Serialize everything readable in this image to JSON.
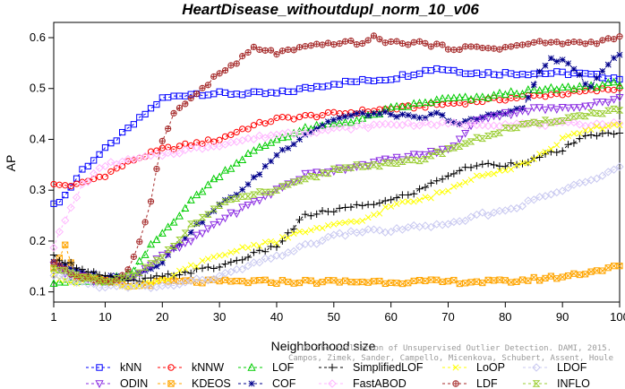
{
  "chart_data": {
    "type": "line",
    "title": "HeartDisease_withoutdupl_norm_10_v06",
    "xlabel": "Neighborhood size",
    "ylabel": "AP",
    "xlim": [
      1,
      100
    ],
    "ylim": [
      0.08,
      0.63
    ],
    "xticks": [
      1,
      10,
      20,
      30,
      40,
      50,
      60,
      70,
      80,
      90,
      100
    ],
    "yticks": [
      0.1,
      0.2,
      0.3,
      0.4,
      0.5,
      0.6
    ],
    "grid": false,
    "legend_position": "bottom",
    "credit": "Campos, Zimek, Sander, Campello, Micenková, Schubert, Assent, Houle",
    "credit_line1": "On the Evaluation of Unsupervised Outlier Detection. DAMI, 2015.",
    "credit_line2": "Campos, Zimek, Sander, Campello, Micenkova, Schubert, Assent, Houle",
    "series": [
      {
        "name": "kNN",
        "color": "#0000ff",
        "marker": "square",
        "dash": "3,3",
        "knots": [
          [
            1,
            0.27
          ],
          [
            3,
            0.29
          ],
          [
            6,
            0.34
          ],
          [
            10,
            0.38
          ],
          [
            14,
            0.42
          ],
          [
            17,
            0.45
          ],
          [
            20,
            0.48
          ],
          [
            25,
            0.49
          ],
          [
            30,
            0.49
          ],
          [
            40,
            0.49
          ],
          [
            50,
            0.51
          ],
          [
            60,
            0.52
          ],
          [
            68,
            0.54
          ],
          [
            75,
            0.53
          ],
          [
            85,
            0.53
          ],
          [
            92,
            0.53
          ],
          [
            100,
            0.52
          ]
        ]
      },
      {
        "name": "kNNW",
        "color": "#ff0000",
        "marker": "circle",
        "dash": "3,3",
        "knots": [
          [
            1,
            0.31
          ],
          [
            5,
            0.31
          ],
          [
            10,
            0.33
          ],
          [
            15,
            0.36
          ],
          [
            20,
            0.38
          ],
          [
            25,
            0.39
          ],
          [
            30,
            0.4
          ],
          [
            34,
            0.42
          ],
          [
            40,
            0.44
          ],
          [
            50,
            0.45
          ],
          [
            60,
            0.46
          ],
          [
            70,
            0.47
          ],
          [
            80,
            0.48
          ],
          [
            90,
            0.49
          ],
          [
            100,
            0.5
          ]
        ]
      },
      {
        "name": "LOF",
        "color": "#00cc00",
        "marker": "triangle",
        "dash": "3,3",
        "knots": [
          [
            1,
            0.12
          ],
          [
            5,
            0.12
          ],
          [
            10,
            0.12
          ],
          [
            15,
            0.14
          ],
          [
            18,
            0.19
          ],
          [
            22,
            0.24
          ],
          [
            26,
            0.29
          ],
          [
            30,
            0.33
          ],
          [
            35,
            0.37
          ],
          [
            40,
            0.4
          ],
          [
            45,
            0.42
          ],
          [
            50,
            0.43
          ],
          [
            55,
            0.44
          ],
          [
            60,
            0.46
          ],
          [
            65,
            0.47
          ],
          [
            70,
            0.48
          ],
          [
            75,
            0.48
          ],
          [
            80,
            0.49
          ],
          [
            90,
            0.5
          ],
          [
            100,
            0.51
          ]
        ]
      },
      {
        "name": "COF",
        "color": "#00008b",
        "marker": "star",
        "dash": "3,3",
        "knots": [
          [
            1,
            0.16
          ],
          [
            5,
            0.14
          ],
          [
            10,
            0.13
          ],
          [
            15,
            0.13
          ],
          [
            20,
            0.16
          ],
          [
            25,
            0.22
          ],
          [
            30,
            0.27
          ],
          [
            35,
            0.31
          ],
          [
            40,
            0.37
          ],
          [
            45,
            0.41
          ],
          [
            50,
            0.44
          ],
          [
            55,
            0.45
          ],
          [
            60,
            0.45
          ],
          [
            65,
            0.44
          ],
          [
            68,
            0.45
          ],
          [
            72,
            0.43
          ],
          [
            78,
            0.45
          ],
          [
            83,
            0.46
          ],
          [
            86,
            0.53
          ],
          [
            88,
            0.56
          ],
          [
            91,
            0.55
          ],
          [
            95,
            0.5
          ],
          [
            98,
            0.55
          ],
          [
            100,
            0.57
          ]
        ]
      },
      {
        "name": "ODIN",
        "color": "#8a2be2",
        "marker": "triangle-down",
        "dash": "3,3",
        "knots": [
          [
            1,
            0.15
          ],
          [
            5,
            0.13
          ],
          [
            10,
            0.12
          ],
          [
            15,
            0.13
          ],
          [
            20,
            0.17
          ],
          [
            25,
            0.2
          ],
          [
            30,
            0.24
          ],
          [
            35,
            0.27
          ],
          [
            40,
            0.3
          ],
          [
            45,
            0.33
          ],
          [
            50,
            0.34
          ],
          [
            55,
            0.35
          ],
          [
            60,
            0.36
          ],
          [
            65,
            0.37
          ],
          [
            70,
            0.38
          ],
          [
            73,
            0.41
          ],
          [
            75,
            0.44
          ],
          [
            80,
            0.45
          ],
          [
            85,
            0.46
          ],
          [
            90,
            0.46
          ],
          [
            100,
            0.48
          ]
        ]
      },
      {
        "name": "KDEOS",
        "color": "#ffa500",
        "marker": "square-x",
        "dash": "3,3",
        "knots": [
          [
            1,
            0.15
          ],
          [
            3,
            0.19
          ],
          [
            5,
            0.13
          ],
          [
            10,
            0.12
          ],
          [
            15,
            0.11
          ],
          [
            20,
            0.12
          ],
          [
            30,
            0.12
          ],
          [
            40,
            0.12
          ],
          [
            50,
            0.12
          ],
          [
            60,
            0.12
          ],
          [
            70,
            0.12
          ],
          [
            80,
            0.12
          ],
          [
            90,
            0.13
          ],
          [
            95,
            0.14
          ],
          [
            100,
            0.15
          ]
        ]
      },
      {
        "name": "SimplifiedLOF",
        "color": "#000000",
        "marker": "plus",
        "dash": "3,3",
        "knots": [
          [
            1,
            0.17
          ],
          [
            5,
            0.15
          ],
          [
            10,
            0.13
          ],
          [
            15,
            0.12
          ],
          [
            20,
            0.13
          ],
          [
            25,
            0.14
          ],
          [
            30,
            0.15
          ],
          [
            35,
            0.17
          ],
          [
            40,
            0.19
          ],
          [
            45,
            0.25
          ],
          [
            50,
            0.26
          ],
          [
            55,
            0.27
          ],
          [
            60,
            0.28
          ],
          [
            65,
            0.3
          ],
          [
            70,
            0.33
          ],
          [
            75,
            0.35
          ],
          [
            80,
            0.35
          ],
          [
            85,
            0.36
          ],
          [
            90,
            0.38
          ],
          [
            95,
            0.41
          ],
          [
            100,
            0.41
          ]
        ]
      },
      {
        "name": "FastABOD",
        "color": "#ffb6ff",
        "marker": "diamond",
        "dash": "3,3",
        "knots": [
          [
            1,
            0.19
          ],
          [
            3,
            0.24
          ],
          [
            6,
            0.31
          ],
          [
            10,
            0.35
          ],
          [
            15,
            0.36
          ],
          [
            20,
            0.37
          ],
          [
            25,
            0.38
          ],
          [
            30,
            0.39
          ],
          [
            35,
            0.4
          ],
          [
            40,
            0.41
          ],
          [
            50,
            0.42
          ],
          [
            60,
            0.43
          ],
          [
            70,
            0.43
          ],
          [
            80,
            0.43
          ],
          [
            90,
            0.43
          ],
          [
            100,
            0.43
          ]
        ]
      },
      {
        "name": "LoOP",
        "color": "#ffff00",
        "marker": "x",
        "dash": "3,3",
        "knots": [
          [
            1,
            0.13
          ],
          [
            5,
            0.12
          ],
          [
            10,
            0.12
          ],
          [
            15,
            0.11
          ],
          [
            20,
            0.12
          ],
          [
            25,
            0.15
          ],
          [
            30,
            0.17
          ],
          [
            35,
            0.19
          ],
          [
            40,
            0.2
          ],
          [
            45,
            0.22
          ],
          [
            50,
            0.23
          ],
          [
            55,
            0.24
          ],
          [
            60,
            0.27
          ],
          [
            65,
            0.28
          ],
          [
            70,
            0.3
          ],
          [
            75,
            0.33
          ],
          [
            80,
            0.34
          ],
          [
            85,
            0.36
          ],
          [
            90,
            0.4
          ],
          [
            95,
            0.42
          ],
          [
            100,
            0.43
          ]
        ]
      },
      {
        "name": "LDF",
        "color": "#a52a2a",
        "marker": "circle-plus",
        "dash": "3,3",
        "knots": [
          [
            1,
            0.16
          ],
          [
            5,
            0.13
          ],
          [
            10,
            0.12
          ],
          [
            12,
            0.12
          ],
          [
            14,
            0.14
          ],
          [
            16,
            0.2
          ],
          [
            18,
            0.28
          ],
          [
            20,
            0.4
          ],
          [
            22,
            0.45
          ],
          [
            25,
            0.48
          ],
          [
            28,
            0.51
          ],
          [
            30,
            0.53
          ],
          [
            33,
            0.55
          ],
          [
            36,
            0.58
          ],
          [
            40,
            0.57
          ],
          [
            45,
            0.58
          ],
          [
            50,
            0.59
          ],
          [
            55,
            0.59
          ],
          [
            57,
            0.6
          ],
          [
            60,
            0.59
          ],
          [
            65,
            0.59
          ],
          [
            70,
            0.58
          ],
          [
            75,
            0.58
          ],
          [
            80,
            0.58
          ],
          [
            85,
            0.59
          ],
          [
            90,
            0.59
          ],
          [
            95,
            0.59
          ],
          [
            100,
            0.6
          ]
        ]
      },
      {
        "name": "LDOF",
        "color": "#c8c8f0",
        "marker": "diamond-open",
        "dash": "3,3",
        "knots": [
          [
            1,
            0.13
          ],
          [
            5,
            0.12
          ],
          [
            10,
            0.11
          ],
          [
            15,
            0.11
          ],
          [
            20,
            0.11
          ],
          [
            25,
            0.12
          ],
          [
            30,
            0.13
          ],
          [
            35,
            0.15
          ],
          [
            40,
            0.17
          ],
          [
            45,
            0.19
          ],
          [
            50,
            0.21
          ],
          [
            55,
            0.22
          ],
          [
            60,
            0.22
          ],
          [
            65,
            0.23
          ],
          [
            70,
            0.23
          ],
          [
            75,
            0.25
          ],
          [
            80,
            0.26
          ],
          [
            85,
            0.28
          ],
          [
            90,
            0.3
          ],
          [
            95,
            0.32
          ],
          [
            100,
            0.35
          ]
        ]
      },
      {
        "name": "INFLO",
        "color": "#9acd32",
        "marker": "hourglass",
        "dash": "3,3",
        "knots": [
          [
            1,
            0.15
          ],
          [
            5,
            0.13
          ],
          [
            10,
            0.12
          ],
          [
            15,
            0.13
          ],
          [
            20,
            0.17
          ],
          [
            25,
            0.23
          ],
          [
            30,
            0.27
          ],
          [
            35,
            0.29
          ],
          [
            40,
            0.3
          ],
          [
            45,
            0.32
          ],
          [
            50,
            0.34
          ],
          [
            55,
            0.35
          ],
          [
            60,
            0.35
          ],
          [
            65,
            0.36
          ],
          [
            70,
            0.38
          ],
          [
            75,
            0.4
          ],
          [
            80,
            0.42
          ],
          [
            85,
            0.43
          ],
          [
            90,
            0.44
          ],
          [
            95,
            0.45
          ],
          [
            100,
            0.46
          ]
        ]
      }
    ],
    "legend_order": [
      "kNN",
      "kNNW",
      "LOF",
      "SimplifiedLOF",
      "LoOP",
      "LDOF",
      "ODIN",
      "KDEOS",
      "COF",
      "FastABOD",
      "LDF",
      "INFLO"
    ]
  }
}
